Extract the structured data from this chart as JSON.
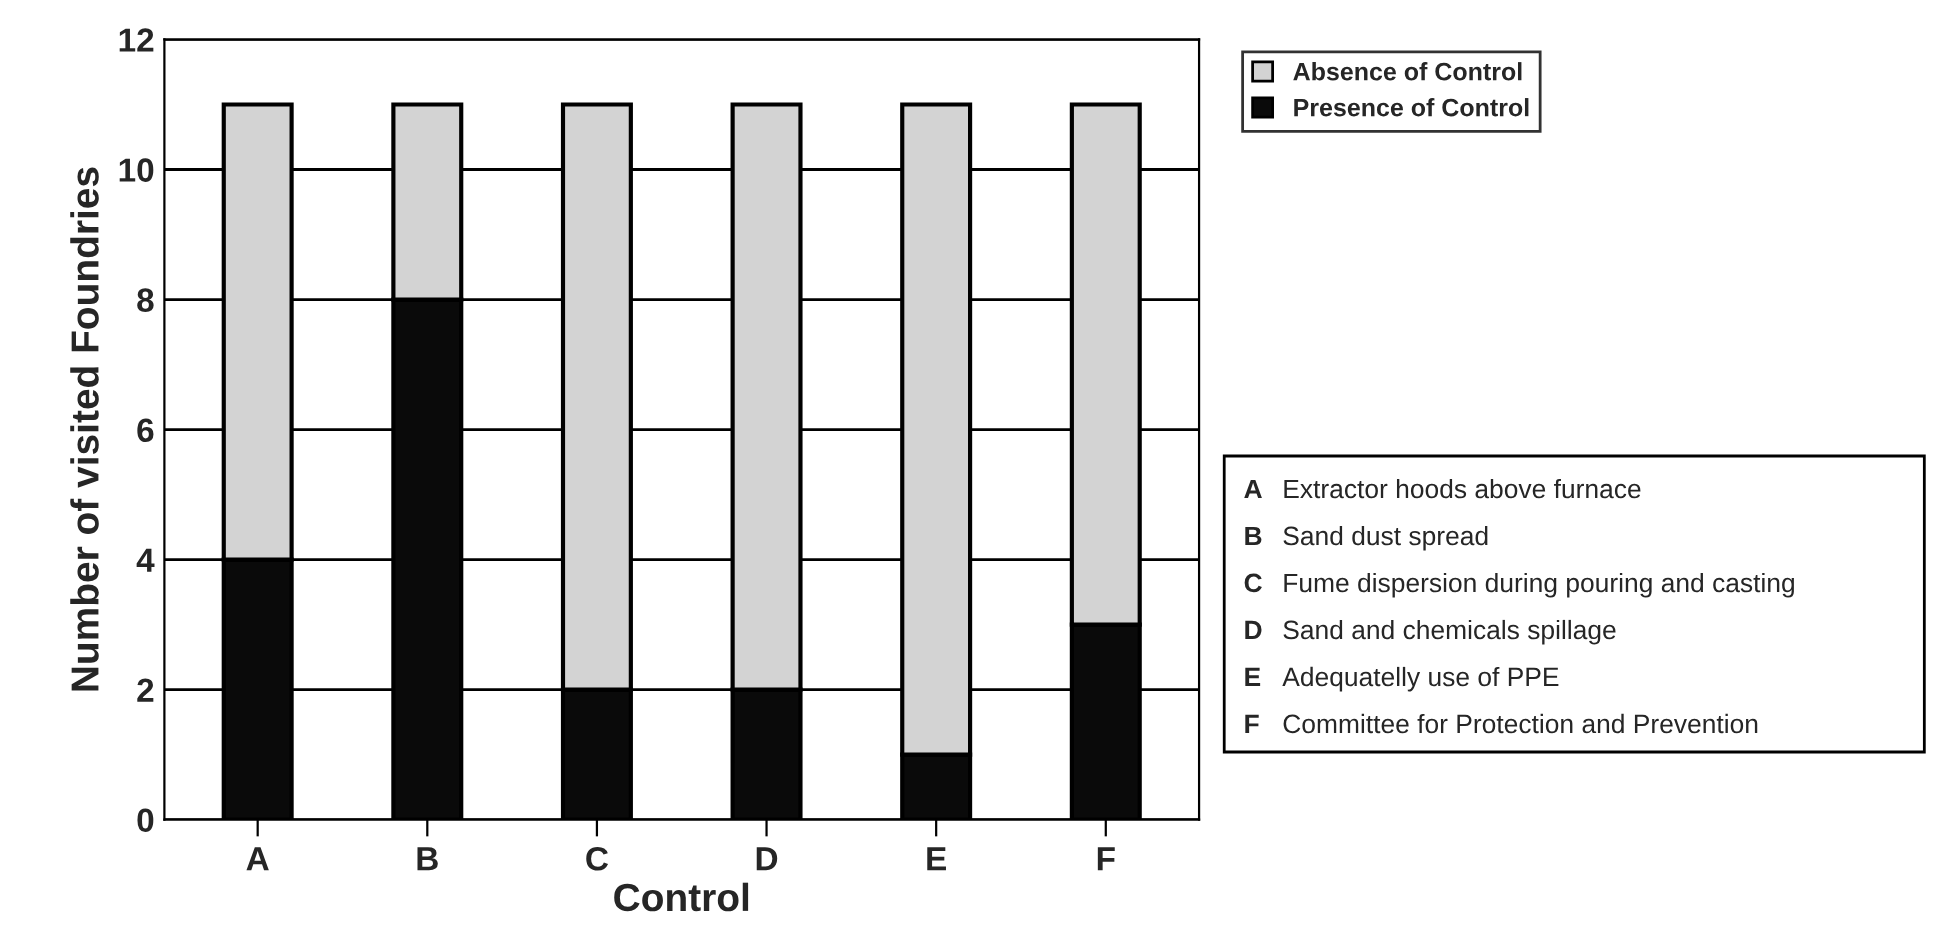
{
  "chart_data": {
    "type": "bar",
    "stacked": true,
    "categories": [
      "A",
      "B",
      "C",
      "D",
      "E",
      "F"
    ],
    "series": [
      {
        "name": "Presence of Control",
        "color": "#0a0a0a",
        "values": [
          4,
          8,
          2,
          2,
          1,
          3
        ]
      },
      {
        "name": "Absence of Control",
        "color": "#d3d3d3",
        "values": [
          7,
          3,
          9,
          9,
          10,
          8
        ]
      }
    ],
    "xlabel": "Control",
    "ylabel": "Number of visited Foundries",
    "ylim": [
      0,
      12
    ],
    "yticks": [
      0,
      2,
      4,
      6,
      8,
      10,
      12
    ],
    "grid": "y",
    "legend": "top right",
    "annotations": [
      "A Extractor hoods above furnace",
      "B Sand dust spread",
      "C Fume dispersion during pouring and casting",
      "D Sand and chemicals spillage",
      "E Adequatelly use of PPE",
      "F Committee for Protection and Prevention"
    ]
  }
}
